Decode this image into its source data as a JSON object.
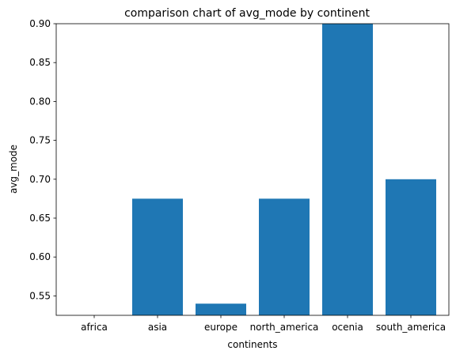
{
  "chart_data": {
    "type": "bar",
    "title": "comparison chart of avg_mode by continent",
    "xlabel": "continents",
    "ylabel": "avg_mode",
    "categories": [
      "africa",
      "asia",
      "europe",
      "north_america",
      "ocenia",
      "south_america"
    ],
    "values": [
      0.5,
      0.675,
      0.54,
      0.675,
      0.9,
      0.7
    ],
    "ylim": [
      0.525,
      0.9
    ],
    "yticks": [
      "0.55",
      "0.60",
      "0.65",
      "0.70",
      "0.75",
      "0.80",
      "0.85",
      "0.90"
    ],
    "bar_color": "#1f77b4",
    "grid": false,
    "legend": "none"
  }
}
